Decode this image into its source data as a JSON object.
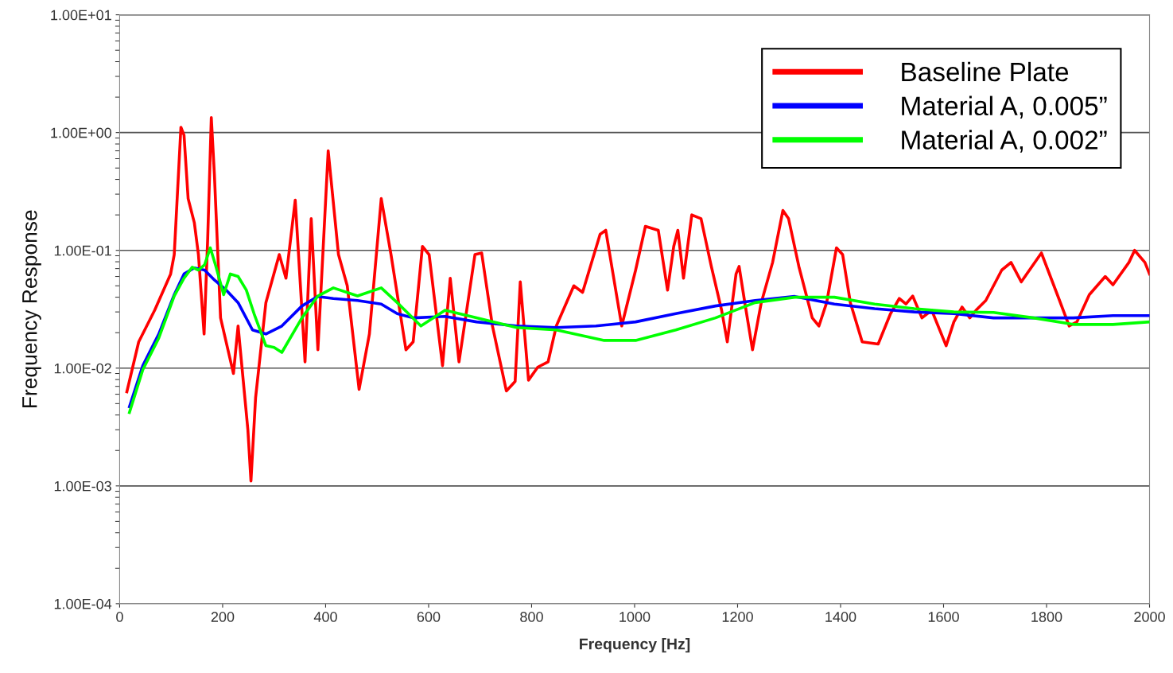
{
  "chart_data": {
    "type": "line",
    "xlabel": "Frequency [Hz]",
    "ylabel": "Frequency Response",
    "log": "y",
    "xlim": [
      0,
      2000
    ],
    "xticks": [
      0,
      200,
      400,
      600,
      800,
      1000,
      1200,
      1400,
      1600,
      1800,
      2000
    ],
    "ylim": [
      0.0001,
      10
    ],
    "yticks": [
      {
        "value": 0.0001,
        "label": "1.00E-04"
      },
      {
        "value": 0.001,
        "label": "1.00E-03"
      },
      {
        "value": 0.01,
        "label": "1.00E-02"
      },
      {
        "value": 0.1,
        "label": "1.00E-01"
      },
      {
        "value": 1,
        "label": "1.00E+00"
      },
      {
        "value": 10,
        "label": "1.00E+01"
      }
    ],
    "grid": "y",
    "legend": "top right",
    "marker": "none",
    "line_style": "solid",
    "series": [
      {
        "name": "Baseline Plate",
        "color": "#ff0000",
        "x": [
          14,
          37,
          68,
          99,
          106,
          119,
          125,
          133,
          145,
          153,
          164,
          171,
          178,
          184,
          196,
          221,
          230,
          249,
          255,
          264,
          284,
          310,
          323,
          341,
          360,
          372,
          385,
          405,
          425,
          442,
          465,
          485,
          508,
          527,
          556,
          570,
          588,
          601,
          627,
          642,
          659,
          690,
          703,
          724,
          751,
          768,
          778,
          794,
          812,
          832,
          848,
          882,
          899,
          933,
          944,
          975,
          1002,
          1021,
          1046,
          1064,
          1076,
          1084,
          1095,
          1111,
          1129,
          1149,
          1169,
          1180,
          1197,
          1203,
          1214,
          1229,
          1246,
          1268,
          1288,
          1299,
          1319,
          1345,
          1358,
          1373,
          1392,
          1404,
          1419,
          1442,
          1473,
          1497,
          1514,
          1527,
          1540,
          1558,
          1577,
          1605,
          1620,
          1636,
          1651,
          1663,
          1682,
          1713,
          1731,
          1751,
          1790,
          1821,
          1844,
          1859,
          1883,
          1914,
          1929,
          1960,
          1971,
          1991,
          2000
        ],
        "values": [
          0.0063,
          0.0167,
          0.031,
          0.063,
          0.092,
          1.11,
          0.95,
          0.275,
          0.172,
          0.092,
          0.0195,
          0.126,
          1.34,
          0.44,
          0.0267,
          0.009,
          0.0228,
          0.003,
          0.0011,
          0.0056,
          0.036,
          0.092,
          0.058,
          0.267,
          0.0113,
          0.186,
          0.0143,
          0.7,
          0.092,
          0.05,
          0.0066,
          0.0195,
          0.275,
          0.092,
          0.0143,
          0.0167,
          0.108,
          0.092,
          0.0105,
          0.058,
          0.0113,
          0.092,
          0.095,
          0.0228,
          0.0064,
          0.0077,
          0.054,
          0.0079,
          0.0102,
          0.0113,
          0.0228,
          0.05,
          0.044,
          0.137,
          0.148,
          0.0228,
          0.068,
          0.16,
          0.148,
          0.046,
          0.108,
          0.148,
          0.058,
          0.2,
          0.186,
          0.073,
          0.031,
          0.0167,
          0.063,
          0.073,
          0.036,
          0.0143,
          0.036,
          0.079,
          0.218,
          0.186,
          0.073,
          0.0267,
          0.0228,
          0.036,
          0.105,
          0.092,
          0.036,
          0.0167,
          0.016,
          0.029,
          0.039,
          0.035,
          0.041,
          0.0267,
          0.031,
          0.0155,
          0.0247,
          0.033,
          0.0267,
          0.031,
          0.0375,
          0.068,
          0.079,
          0.054,
          0.095,
          0.042,
          0.0228,
          0.0247,
          0.042,
          0.06,
          0.051,
          0.079,
          0.1,
          0.079,
          0.063
        ]
      },
      {
        "name": "Material A, 0.005”",
        "color": "#0000ff",
        "x": [
          19,
          45,
          76,
          106,
          125,
          145,
          165,
          184,
          207,
          230,
          258,
          284,
          315,
          354,
          385,
          415,
          462,
          508,
          539,
          570,
          632,
          693,
          771,
          848,
          925,
          1002,
          1080,
          1157,
          1234,
          1311,
          1388,
          1466,
          1543,
          1620,
          1697,
          1775,
          1852,
          1929,
          2000
        ],
        "values": [
          0.0047,
          0.0105,
          0.0195,
          0.042,
          0.063,
          0.071,
          0.068,
          0.056,
          0.046,
          0.036,
          0.0211,
          0.0195,
          0.0228,
          0.0337,
          0.0406,
          0.039,
          0.0375,
          0.035,
          0.029,
          0.0267,
          0.0275,
          0.0247,
          0.0228,
          0.0221,
          0.0228,
          0.0247,
          0.029,
          0.0337,
          0.0375,
          0.0406,
          0.035,
          0.032,
          0.03,
          0.029,
          0.0267,
          0.0267,
          0.0267,
          0.0279,
          0.0279
        ]
      },
      {
        "name": "Material A, 0.002”",
        "color": "#00ff00",
        "x": [
          19,
          45,
          76,
          106,
          125,
          141,
          153,
          165,
          176,
          187,
          202,
          215,
          230,
          246,
          261,
          284,
          300,
          315,
          354,
          385,
          415,
          462,
          508,
          539,
          585,
          632,
          693,
          771,
          848,
          941,
          1002,
          1080,
          1157,
          1234,
          1311,
          1388,
          1466,
          1543,
          1620,
          1697,
          1775,
          1852,
          1929,
          2000
        ],
        "values": [
          0.0042,
          0.0097,
          0.018,
          0.041,
          0.058,
          0.072,
          0.068,
          0.0755,
          0.105,
          0.073,
          0.042,
          0.063,
          0.06,
          0.046,
          0.029,
          0.0155,
          0.015,
          0.0136,
          0.0267,
          0.041,
          0.048,
          0.041,
          0.048,
          0.036,
          0.0228,
          0.031,
          0.0267,
          0.0221,
          0.0211,
          0.0172,
          0.0172,
          0.0211,
          0.0267,
          0.036,
          0.04,
          0.04,
          0.035,
          0.032,
          0.03,
          0.0297,
          0.0267,
          0.0235,
          0.0235,
          0.0247
        ]
      }
    ]
  }
}
